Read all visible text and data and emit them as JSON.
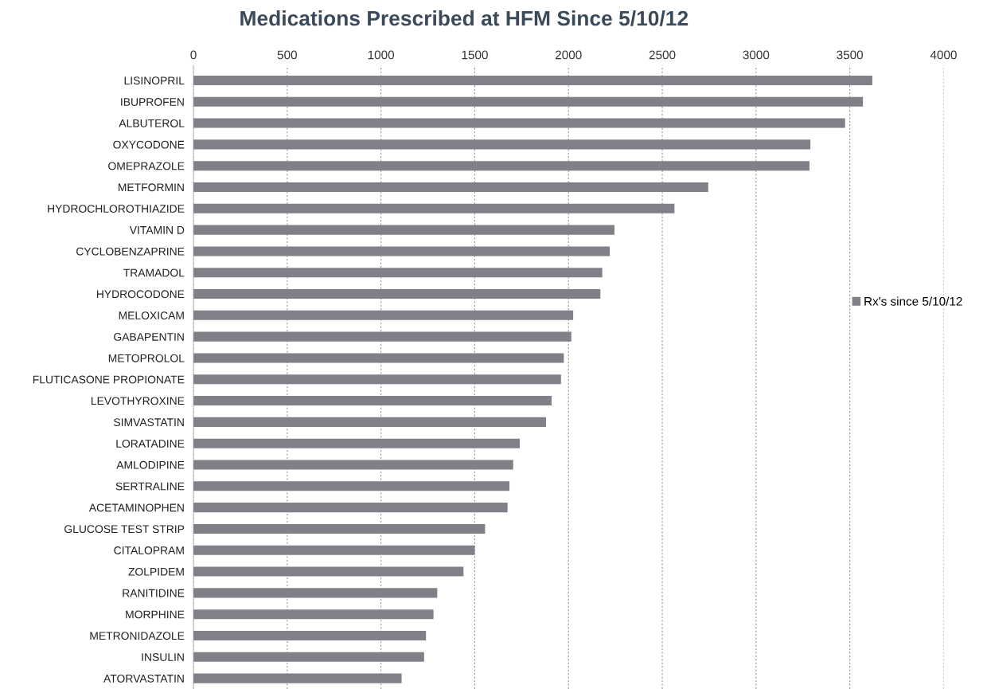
{
  "chart_data": {
    "type": "bar",
    "orientation": "horizontal",
    "title": "Medications Prescribed at HFM Since 5/10/12",
    "categories": [
      "LISINOPRIL",
      "IBUPROFEN",
      "ALBUTEROL",
      "OXYCODONE",
      "OMEPRAZOLE",
      "METFORMIN",
      "HYDROCHLOROTHIAZIDE",
      "VITAMIN D",
      "CYCLOBENZAPRINE",
      "TRAMADOL",
      "HYDROCODONE",
      "MELOXICAM",
      "GABAPENTIN",
      "METOPROLOL",
      "FLUTICASONE PROPIONATE",
      "LEVOTHYROXINE",
      "SIMVASTATIN",
      "LORATADINE",
      "AMLODIPINE",
      "SERTRALINE",
      "ACETAMINOPHEN",
      "GLUCOSE TEST STRIP",
      "CITALOPRAM",
      "ZOLPIDEM",
      "RANITIDINE",
      "MORPHINE",
      "METRONIDAZOLE",
      "INSULIN",
      "ATORVASTATIN"
    ],
    "series": [
      {
        "name": "Rx's since 5/10/12",
        "color": "#808088",
        "values": [
          3620,
          3570,
          3475,
          3290,
          3285,
          2745,
          2565,
          2245,
          2220,
          2180,
          2170,
          2025,
          2015,
          1975,
          1960,
          1910,
          1880,
          1740,
          1705,
          1685,
          1675,
          1555,
          1500,
          1440,
          1300,
          1280,
          1240,
          1230,
          1110
        ]
      }
    ],
    "xlim": [
      0,
      4000
    ],
    "xticks": [
      0,
      500,
      1000,
      1500,
      2000,
      2500,
      3000,
      3500,
      4000
    ],
    "grid": "x",
    "legend": "right"
  }
}
